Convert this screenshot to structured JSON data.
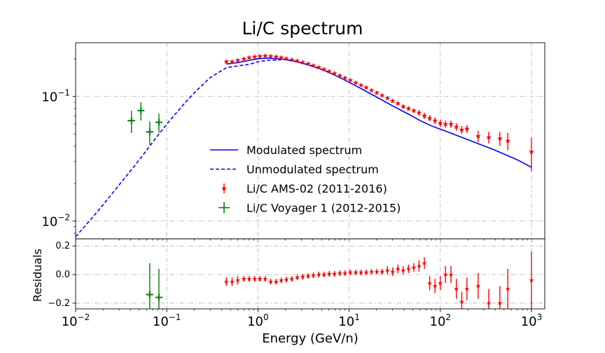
{
  "chart_data": {
    "type": "scatter",
    "title": "Li/C spectrum",
    "xlabel": "Energy (GeV/n)",
    "ylabel_residuals": "Residuals",
    "xscale": "log",
    "yscale_top": "log",
    "xlim": [
      0.01,
      1400
    ],
    "ylim_top": [
      0.0072,
      0.27
    ],
    "ylim_bottom": [
      -0.24,
      0.25
    ],
    "grid": true,
    "legend_position": "lower-center",
    "x_ticks": [
      {
        "value": 0.01,
        "base": "10",
        "exp": "−2"
      },
      {
        "value": 0.1,
        "base": "10",
        "exp": "−1"
      },
      {
        "value": 1,
        "base": "10",
        "exp": "0"
      },
      {
        "value": 10,
        "base": "10",
        "exp": "1"
      },
      {
        "value": 100,
        "base": "10",
        "exp": "2"
      },
      {
        "value": 1000,
        "base": "10",
        "exp": "3"
      }
    ],
    "y_ticks_top": [
      {
        "value": 0.01,
        "base": "10",
        "exp": "−2"
      },
      {
        "value": 0.1,
        "base": "10",
        "exp": "−1"
      }
    ],
    "y_ticks_bottom": [
      {
        "value": 0.2,
        "label": "0.2"
      },
      {
        "value": 0.0,
        "label": "0.0"
      },
      {
        "value": -0.2,
        "label": "−0.2"
      }
    ],
    "series": [
      {
        "name": "Modulated spectrum",
        "kind": "line",
        "color": "#0000ff",
        "style": "solid",
        "x": [
          0.45,
          0.6,
          0.8,
          1.0,
          1.3,
          1.8,
          2.5,
          3.5,
          5,
          7,
          10,
          14,
          20,
          30,
          45,
          60,
          80,
          120,
          200,
          400,
          700,
          1000
        ],
        "y": [
          0.182,
          0.187,
          0.195,
          0.201,
          0.203,
          0.2,
          0.192,
          0.18,
          0.165,
          0.148,
          0.13,
          0.114,
          0.099,
          0.084,
          0.072,
          0.064,
          0.058,
          0.052,
          0.045,
          0.037,
          0.031,
          0.027
        ]
      },
      {
        "name": "Unmodulated spectrum",
        "kind": "line",
        "color": "#0000ff",
        "style": "dashed",
        "x": [
          0.01,
          0.015,
          0.02,
          0.03,
          0.05,
          0.07,
          0.1,
          0.15,
          0.2,
          0.3,
          0.45,
          0.6,
          0.8,
          1.0,
          1.3,
          1.8
        ],
        "y": [
          0.0075,
          0.0105,
          0.0135,
          0.0195,
          0.031,
          0.043,
          0.06,
          0.085,
          0.107,
          0.142,
          0.17,
          0.176,
          0.181,
          0.19,
          0.195,
          0.197
        ]
      },
      {
        "name": "Li/C AMS-02 (2011-2016)",
        "kind": "errorbar",
        "color": "#ff0000",
        "marker": "*",
        "x": [
          0.45,
          0.52,
          0.6,
          0.7,
          0.8,
          0.92,
          1.05,
          1.2,
          1.38,
          1.58,
          1.8,
          2.05,
          2.35,
          2.7,
          3.1,
          3.55,
          4.05,
          4.65,
          5.3,
          6.05,
          6.9,
          7.9,
          9.0,
          10.3,
          11.8,
          13.5,
          15.4,
          17.6,
          20.1,
          23.0,
          26.3,
          30.0,
          34.3,
          39.2,
          44.8,
          51.2,
          58.5,
          66.9,
          76.5,
          87.5,
          100,
          114,
          131,
          150,
          172,
          196,
          260,
          340,
          450,
          550,
          1000
        ],
        "y": [
          0.19,
          0.19,
          0.195,
          0.2,
          0.205,
          0.208,
          0.21,
          0.212,
          0.21,
          0.208,
          0.205,
          0.201,
          0.197,
          0.193,
          0.188,
          0.183,
          0.177,
          0.171,
          0.165,
          0.159,
          0.153,
          0.147,
          0.141,
          0.135,
          0.129,
          0.123,
          0.118,
          0.112,
          0.107,
          0.102,
          0.097,
          0.092,
          0.088,
          0.083,
          0.08,
          0.077,
          0.074,
          0.07,
          0.067,
          0.064,
          0.061,
          0.06,
          0.06,
          0.057,
          0.054,
          0.055,
          0.048,
          0.047,
          0.046,
          0.044,
          0.036
        ],
        "yerr": [
          0.004,
          0.004,
          0.004,
          0.004,
          0.004,
          0.004,
          0.004,
          0.004,
          0.004,
          0.004,
          0.004,
          0.004,
          0.004,
          0.004,
          0.004,
          0.004,
          0.004,
          0.003,
          0.003,
          0.003,
          0.003,
          0.003,
          0.003,
          0.003,
          0.003,
          0.003,
          0.003,
          0.003,
          0.003,
          0.003,
          0.003,
          0.003,
          0.003,
          0.003,
          0.003,
          0.003,
          0.004,
          0.004,
          0.004,
          0.004,
          0.004,
          0.004,
          0.004,
          0.004,
          0.004,
          0.004,
          0.005,
          0.005,
          0.006,
          0.007,
          0.011
        ],
        "residuals": [
          -0.05,
          -0.05,
          -0.04,
          -0.03,
          -0.03,
          -0.03,
          -0.03,
          -0.03,
          -0.05,
          -0.05,
          -0.04,
          -0.035,
          -0.03,
          -0.02,
          -0.015,
          -0.01,
          -0.005,
          0.0,
          0.0,
          0.005,
          0.005,
          0.01,
          0.01,
          0.015,
          0.015,
          0.015,
          0.015,
          0.02,
          0.02,
          0.02,
          0.03,
          0.02,
          0.04,
          0.03,
          0.04,
          0.05,
          0.06,
          0.08,
          -0.06,
          -0.08,
          -0.06,
          0.0,
          0.0,
          -0.1,
          -0.19,
          -0.1,
          -0.08,
          -0.2,
          -0.2,
          -0.1,
          -0.04
        ],
        "residuals_err": [
          0.03,
          0.03,
          0.03,
          0.02,
          0.02,
          0.02,
          0.02,
          0.02,
          0.02,
          0.02,
          0.02,
          0.02,
          0.02,
          0.02,
          0.02,
          0.02,
          0.02,
          0.02,
          0.02,
          0.02,
          0.02,
          0.02,
          0.02,
          0.02,
          0.02,
          0.02,
          0.02,
          0.02,
          0.02,
          0.02,
          0.03,
          0.03,
          0.03,
          0.03,
          0.03,
          0.03,
          0.04,
          0.04,
          0.05,
          0.05,
          0.05,
          0.06,
          0.06,
          0.07,
          0.07,
          0.08,
          0.09,
          0.1,
          0.12,
          0.14,
          0.2
        ]
      },
      {
        "name": "Li/C Voyager 1 (2012-2015)",
        "kind": "errorbar",
        "color": "#008000",
        "marker": "+",
        "x": [
          0.041,
          0.052,
          0.065,
          0.082
        ],
        "y": [
          0.064,
          0.077,
          0.052,
          0.062
        ],
        "yerr": [
          0.013,
          0.013,
          0.011,
          0.011
        ],
        "xerr_lo": [
          0.004,
          0.004,
          0.006,
          0.006
        ],
        "xerr_hi": [
          0.004,
          0.004,
          0.006,
          0.006
        ],
        "residuals": [
          -999,
          -999,
          -0.14,
          -0.16
        ],
        "residuals_err": [
          0.0,
          0.0,
          0.22,
          0.2
        ]
      }
    ]
  }
}
